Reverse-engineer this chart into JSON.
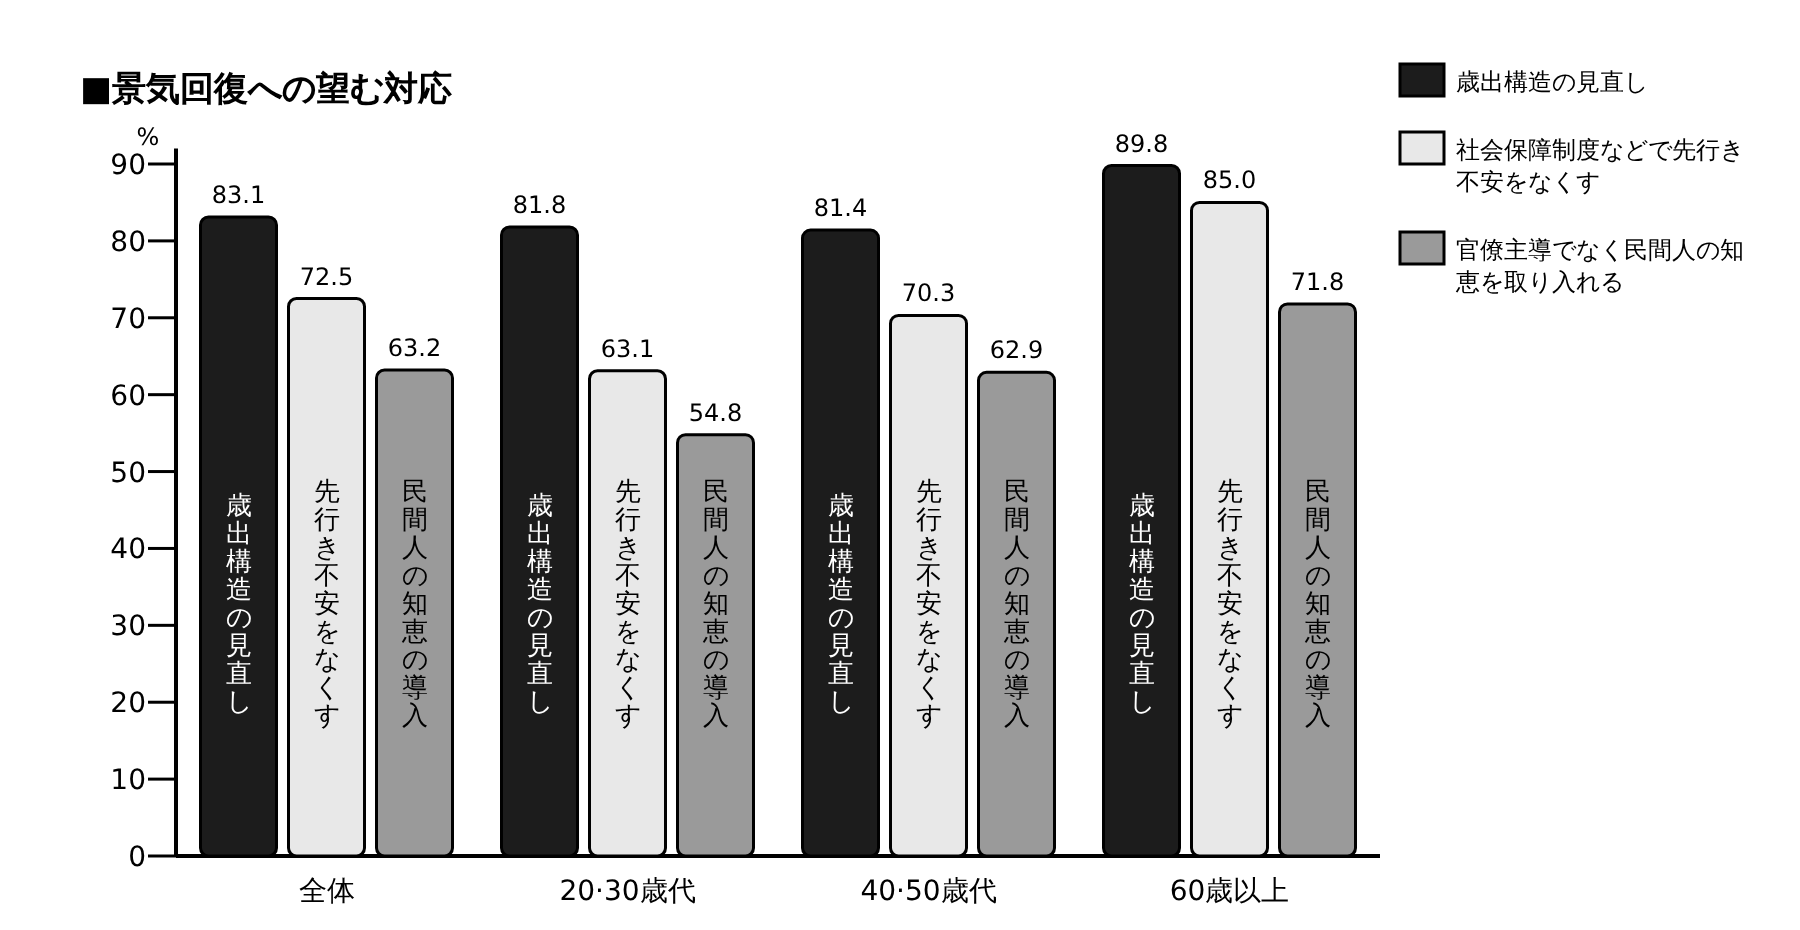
{
  "chart_data": {
    "type": "bar",
    "title": "■景気回復への望む対応",
    "categories": [
      "全体",
      "20·30歳代",
      "40·50歳代",
      "60歳以上"
    ],
    "series": [
      {
        "name": "歳出構造の見直し",
        "color": "#1c1c1c",
        "values": [
          83.1,
          81.8,
          81.4,
          89.8
        ],
        "value_labels": [
          "83.1",
          "81.8",
          "81.4",
          "89.8"
        ]
      },
      {
        "name": "社会保障制度などで先行き不安をなくす",
        "color": "#e8e8e8",
        "values": [
          72.5,
          63.1,
          70.3,
          85.0
        ],
        "value_labels": [
          "72.5",
          "63.1",
          "70.3",
          "85.0"
        ]
      },
      {
        "name": "官僚主導でなく民間人の知恵を取り入れる",
        "color": "#9a9a9a",
        "values": [
          63.2,
          54.8,
          62.9,
          71.8
        ],
        "value_labels": [
          "63.2",
          "54.8",
          "62.9",
          "71.8"
        ]
      }
    ],
    "ylabel": "%",
    "ylim": [
      0,
      92
    ],
    "yticks": [
      0,
      10,
      20,
      30,
      40,
      50,
      60,
      70,
      80,
      90
    ],
    "legend": "top right",
    "grid": false,
    "annotations": [
      "歳出構造の見直し",
      "先行き不安をなくす",
      "民間人の知恵の導入",
      "歳出構造の見直し",
      "先行き不安をなくす",
      "民間人の知恵の導入",
      "歳出構造の見直し",
      "先行き不安をなくす",
      "民間人の知恵の導入",
      "歳出構造の見直し",
      "先行き不安をなくす",
      "民間人の知恵の導入"
    ]
  }
}
